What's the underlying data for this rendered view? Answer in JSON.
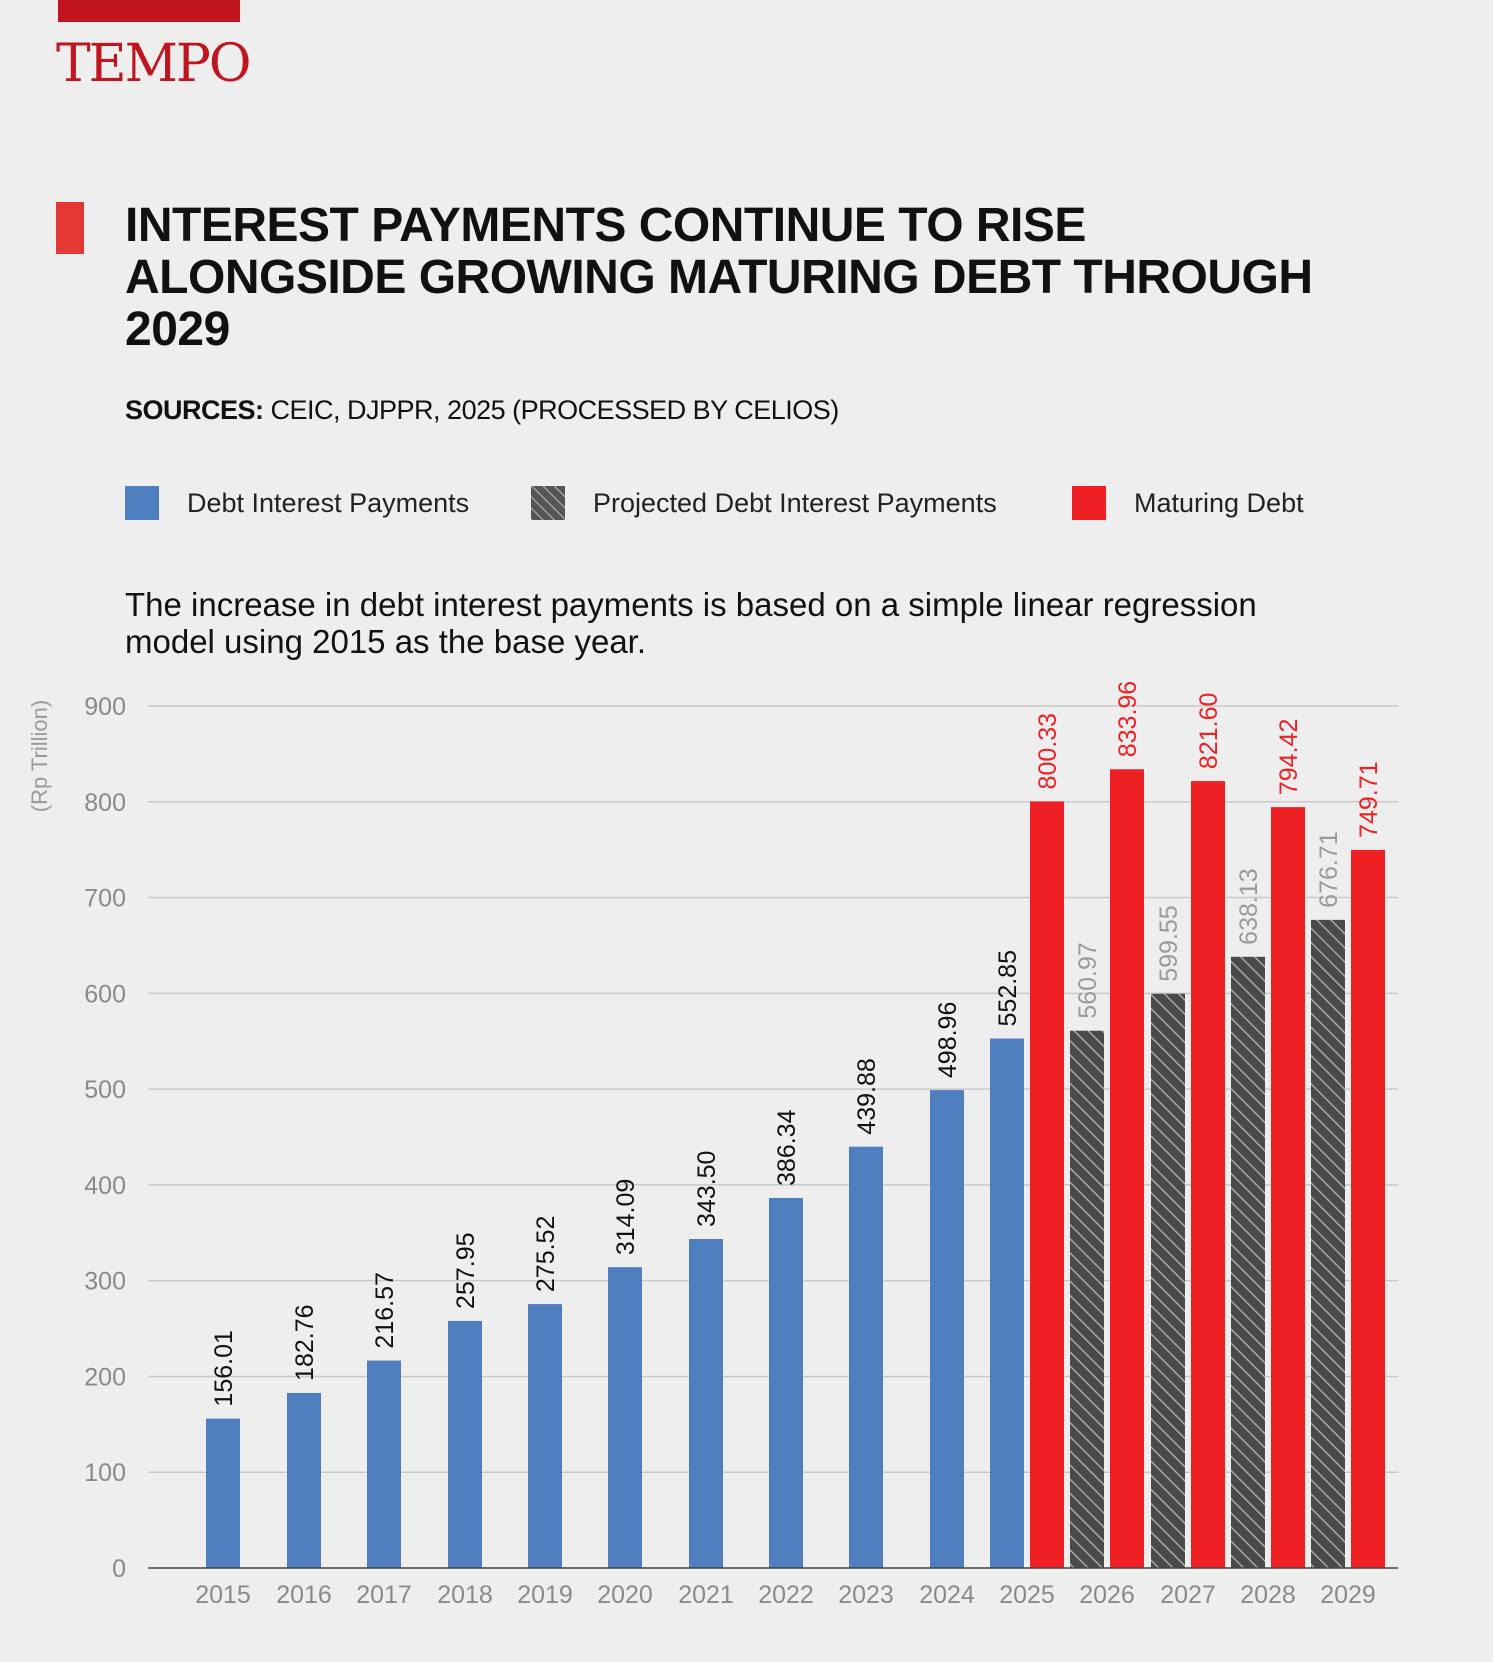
{
  "brand": {
    "name": "TEMPO",
    "color": "#c0151f"
  },
  "header": {
    "title": "INTEREST PAYMENTS CONTINUE TO RISE ALONGSIDE GROWING MATURING DEBT THROUGH 2029",
    "sources_label": "SOURCES:",
    "sources_text": "CEIC, DJPPR, 2025 (PROCESSED BY CELIOS)",
    "note": "The increase in debt interest payments is based on a simple linear regression model using 2015 as the base year."
  },
  "legend": [
    {
      "label": "Debt Interest Payments",
      "icon": "blue-square-icon",
      "color": "#4f7fbf"
    },
    {
      "label": "Projected Debt Interest Payments",
      "icon": "hatched-square-icon",
      "color": "#555555"
    },
    {
      "label": "Maturing Debt",
      "icon": "red-square-icon",
      "color": "#ee2024"
    }
  ],
  "chart_data": {
    "type": "bar",
    "title": "INTEREST PAYMENTS CONTINUE TO RISE ALONGSIDE GROWING MATURING DEBT THROUGH 2029",
    "xlabel": "",
    "ylabel": "(Rp Trillion)",
    "ylim": [
      0,
      900
    ],
    "yticks": [
      0,
      100,
      200,
      300,
      400,
      500,
      600,
      700,
      800,
      900
    ],
    "grid": true,
    "legend_position": "top",
    "categories": [
      "2015",
      "2016",
      "2017",
      "2018",
      "2019",
      "2020",
      "2021",
      "2022",
      "2023",
      "2024",
      "2025",
      "2026",
      "2027",
      "2028",
      "2029"
    ],
    "series": [
      {
        "name": "Debt Interest Payments",
        "color": "#4f7fbf",
        "label_color": "#111111",
        "values": [
          156.01,
          182.76,
          216.57,
          257.95,
          275.52,
          314.09,
          343.5,
          386.34,
          439.88,
          498.96,
          552.85,
          null,
          null,
          null,
          null
        ],
        "labels": [
          "156.01",
          "182.76",
          "216.57",
          "257.95",
          "275.52",
          "314.09",
          "343.50",
          "386.34",
          "439.88",
          "498.96",
          "552.85",
          null,
          null,
          null,
          null
        ]
      },
      {
        "name": "Projected Debt Interest Payments",
        "color": "#555555",
        "label_color": "#9a9a9a",
        "pattern": "hatched",
        "values": [
          null,
          null,
          null,
          null,
          null,
          null,
          null,
          null,
          null,
          null,
          null,
          560.97,
          599.55,
          638.13,
          676.71
        ],
        "labels": [
          null,
          null,
          null,
          null,
          null,
          null,
          null,
          null,
          null,
          null,
          null,
          "560.97",
          "599.55",
          "638.13",
          "676.71"
        ]
      },
      {
        "name": "Maturing Debt",
        "color": "#ee2024",
        "label_color": "#ee2024",
        "values": [
          null,
          null,
          null,
          null,
          null,
          null,
          null,
          null,
          null,
          null,
          800.33,
          833.96,
          821.6,
          794.42,
          749.71
        ],
        "labels": [
          null,
          null,
          null,
          null,
          null,
          null,
          null,
          null,
          null,
          null,
          "800.33",
          "833.96",
          "821.60",
          "794.42",
          "749.71"
        ]
      }
    ]
  }
}
